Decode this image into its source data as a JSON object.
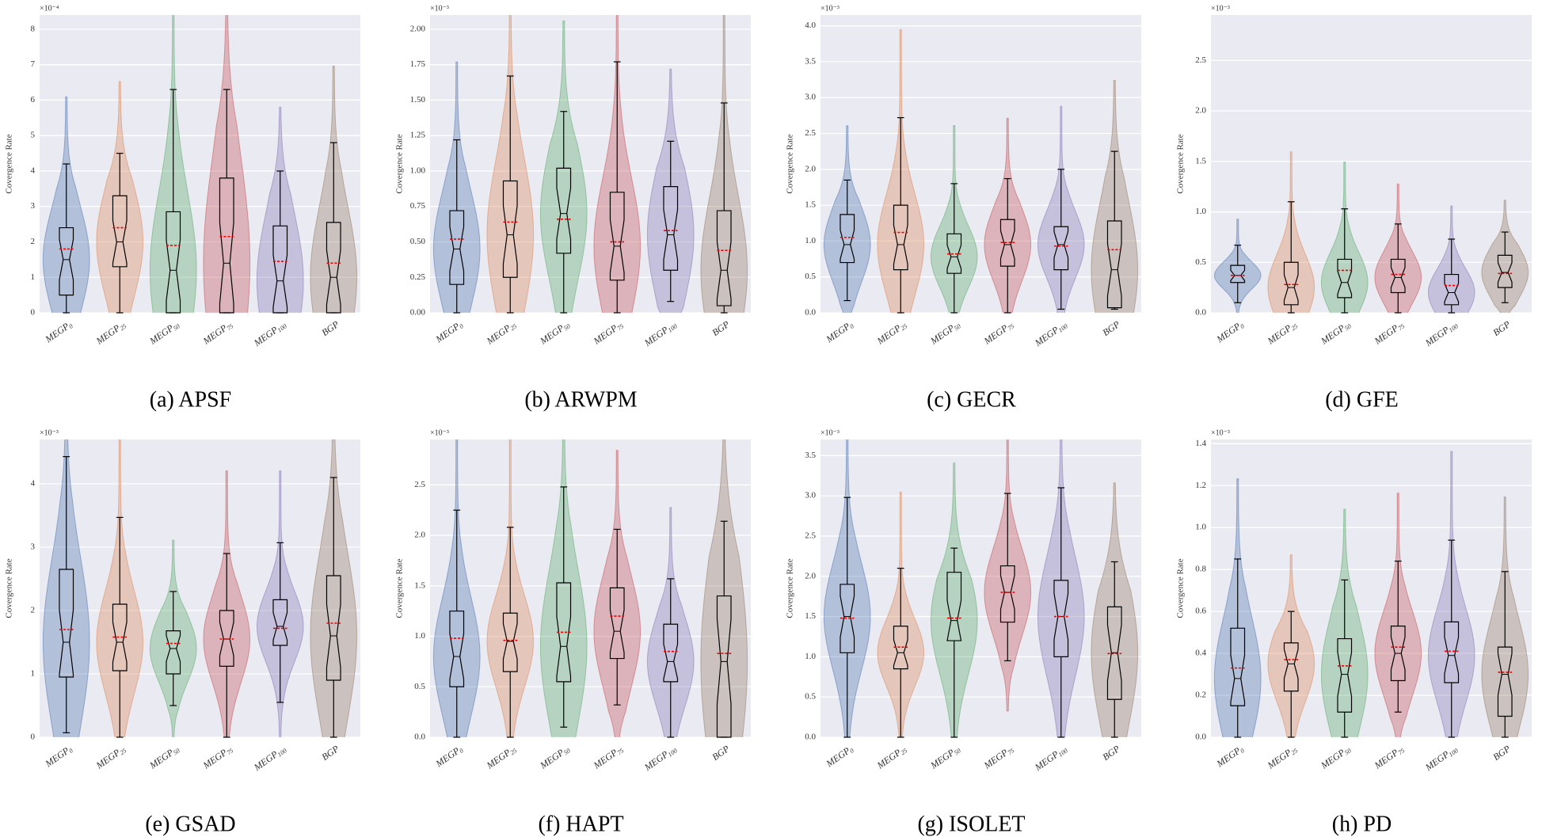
{
  "chart_data": [
    {
      "type": "violin",
      "caption": "(a) APSF",
      "ylabel": "Covergence Rate",
      "y_scale_label": "×10⁻⁴",
      "categories": [
        "MEGP0",
        "MEGP25",
        "MEGP50",
        "MEGP75",
        "MEGP100",
        "BGP"
      ],
      "colors": [
        "#4c72b0",
        "#dd8452",
        "#55a868",
        "#c44e52",
        "#8172b3",
        "#937860"
      ],
      "ylim": [
        0,
        8.4
      ],
      "yticks": [
        0,
        1,
        2,
        3,
        4,
        5,
        6,
        7,
        8
      ],
      "grid": true,
      "whisker_low": [
        0,
        0,
        0,
        0,
        0,
        0
      ],
      "q1": [
        0.5,
        1.3,
        0,
        0,
        0,
        0
      ],
      "median": [
        1.5,
        2.0,
        1.2,
        1.4,
        0.9,
        1.0
      ],
      "q3": [
        2.4,
        3.3,
        2.85,
        3.8,
        2.45,
        2.55
      ],
      "whisker_high": [
        4.2,
        4.5,
        6.3,
        6.3,
        4.0,
        4.8
      ],
      "mean": [
        1.8,
        2.4,
        1.9,
        2.15,
        1.45,
        1.4
      ]
    },
    {
      "type": "violin",
      "caption": "(b) ARWPM",
      "ylabel": "Covergence Rate",
      "y_scale_label": "×10⁻³",
      "categories": [
        "MEGP0",
        "MEGP25",
        "MEGP50",
        "MEGP75",
        "MEGP100",
        "BGP"
      ],
      "colors": [
        "#4c72b0",
        "#dd8452",
        "#55a868",
        "#c44e52",
        "#8172b3",
        "#937860"
      ],
      "ylim": [
        0,
        2.1
      ],
      "yticks": [
        {
          "value": 0,
          "label": "0.00"
        },
        {
          "value": 0.25,
          "label": "0.25"
        },
        {
          "value": 0.5,
          "label": "0.50"
        },
        {
          "value": 0.75,
          "label": "0.75"
        },
        {
          "value": 1,
          "label": "1.00"
        },
        {
          "value": 1.25,
          "label": "1.25"
        },
        {
          "value": 1.5,
          "label": "1.50"
        },
        {
          "value": 1.75,
          "label": "1.75"
        },
        {
          "value": 2,
          "label": "2.00"
        }
      ],
      "grid": true,
      "whisker_low": [
        0,
        0,
        0,
        0,
        0.08,
        0
      ],
      "q1": [
        0.2,
        0.25,
        0.42,
        0.23,
        0.3,
        0.05
      ],
      "median": [
        0.45,
        0.55,
        0.7,
        0.47,
        0.55,
        0.3
      ],
      "q3": [
        0.72,
        0.93,
        1.02,
        0.85,
        0.89,
        0.72
      ],
      "whisker_high": [
        1.22,
        1.67,
        1.42,
        1.77,
        1.21,
        1.48
      ],
      "mean": [
        0.52,
        0.64,
        0.66,
        0.5,
        0.58,
        0.44
      ]
    },
    {
      "type": "violin",
      "caption": "(c) GECR",
      "ylabel": "Covergence Rate",
      "y_scale_label": "×10⁻³",
      "categories": [
        "MEGP0",
        "MEGP25",
        "MEGP50",
        "MEGP75",
        "MEGP100",
        "BGP"
      ],
      "colors": [
        "#4c72b0",
        "#dd8452",
        "#55a868",
        "#c44e52",
        "#8172b3",
        "#937860"
      ],
      "ylim": [
        0,
        4.15
      ],
      "yticks": [
        {
          "value": 0,
          "label": "0.0"
        },
        {
          "value": 0.5,
          "label": "0.5"
        },
        {
          "value": 1,
          "label": "1.0"
        },
        {
          "value": 1.5,
          "label": "1.5"
        },
        {
          "value": 2,
          "label": "2.0"
        },
        {
          "value": 2.5,
          "label": "2.5"
        },
        {
          "value": 3,
          "label": "3.0"
        },
        {
          "value": 3.5,
          "label": "3.5"
        },
        {
          "value": 4,
          "label": "4.0"
        }
      ],
      "grid": true,
      "whisker_low": [
        0.17,
        0,
        0,
        0,
        0.05,
        0.05
      ],
      "q1": [
        0.7,
        0.6,
        0.55,
        0.65,
        0.6,
        0.07
      ],
      "median": [
        0.95,
        0.95,
        0.78,
        0.95,
        0.95,
        0.6
      ],
      "q3": [
        1.37,
        1.5,
        1.1,
        1.3,
        1.2,
        1.28
      ],
      "whisker_high": [
        1.85,
        2.72,
        1.8,
        1.87,
        2.0,
        2.25
      ],
      "mean": [
        1.05,
        1.12,
        0.82,
        0.98,
        0.93,
        0.88
      ]
    },
    {
      "type": "violin",
      "caption": "(d) GFE",
      "ylabel": "Covergence Rate",
      "y_scale_label": "×10⁻³",
      "categories": [
        "MEGP0",
        "MEGP25",
        "MEGP50",
        "MEGP75",
        "MEGP100",
        "BGP"
      ],
      "colors": [
        "#4c72b0",
        "#dd8452",
        "#55a868",
        "#c44e52",
        "#8172b3",
        "#937860"
      ],
      "ylim": [
        0,
        2.95
      ],
      "yticks": [
        {
          "value": 0,
          "label": "0.0"
        },
        {
          "value": 0.5,
          "label": "0.5"
        },
        {
          "value": 1,
          "label": "1.0"
        },
        {
          "value": 1.5,
          "label": "1.5"
        },
        {
          "value": 2,
          "label": "2.0"
        },
        {
          "value": 2.5,
          "label": "2.5"
        }
      ],
      "grid": true,
      "whisker_low": [
        0.1,
        0,
        0,
        0,
        0,
        0.1
      ],
      "q1": [
        0.3,
        0.08,
        0.15,
        0.2,
        0.08,
        0.25
      ],
      "median": [
        0.37,
        0.25,
        0.3,
        0.35,
        0.2,
        0.4
      ],
      "q3": [
        0.47,
        0.5,
        0.53,
        0.53,
        0.38,
        0.57
      ],
      "whisker_high": [
        0.67,
        1.1,
        1.03,
        0.88,
        0.73,
        0.8
      ],
      "mean": [
        0.37,
        0.28,
        0.42,
        0.38,
        0.27,
        0.39
      ]
    },
    {
      "type": "violin",
      "caption": "(e) GSAD",
      "ylabel": "Covergence Rate",
      "y_scale_label": "×10⁻³",
      "categories": [
        "MEGP0",
        "MEGP25",
        "MEGP50",
        "MEGP75",
        "MEGP100",
        "BGP"
      ],
      "colors": [
        "#4c72b0",
        "#dd8452",
        "#55a868",
        "#c44e52",
        "#8172b3",
        "#937860"
      ],
      "ylim": [
        0,
        4.7
      ],
      "yticks": [
        0,
        1,
        2,
        3,
        4
      ],
      "grid": true,
      "whisker_low": [
        0.07,
        0,
        0.5,
        0,
        0.55,
        0
      ],
      "q1": [
        0.95,
        1.05,
        1.0,
        1.12,
        1.45,
        0.9
      ],
      "median": [
        1.5,
        1.5,
        1.4,
        1.55,
        1.75,
        1.6
      ],
      "q3": [
        2.65,
        2.1,
        1.68,
        2.0,
        2.17,
        2.55
      ],
      "whisker_high": [
        4.43,
        3.47,
        2.3,
        2.9,
        3.07,
        4.1
      ],
      "mean": [
        1.7,
        1.58,
        1.48,
        1.55,
        1.72,
        1.8
      ]
    },
    {
      "type": "violin",
      "caption": "(f) HAPT",
      "ylabel": "Covergence Rate",
      "y_scale_label": "×10⁻³",
      "categories": [
        "MEGP0",
        "MEGP25",
        "MEGP50",
        "MEGP75",
        "MEGP100",
        "BGP"
      ],
      "colors": [
        "#4c72b0",
        "#dd8452",
        "#55a868",
        "#c44e52",
        "#8172b3",
        "#937860"
      ],
      "ylim": [
        0,
        2.95
      ],
      "yticks": [
        {
          "value": 0,
          "label": "0.0"
        },
        {
          "value": 0.5,
          "label": "0.5"
        },
        {
          "value": 1,
          "label": "1.0"
        },
        {
          "value": 1.5,
          "label": "1.5"
        },
        {
          "value": 2,
          "label": "2.0"
        },
        {
          "value": 2.5,
          "label": "2.5"
        }
      ],
      "grid": true,
      "whisker_low": [
        0,
        0,
        0.1,
        0.32,
        0,
        0
      ],
      "q1": [
        0.5,
        0.65,
        0.55,
        0.78,
        0.55,
        0
      ],
      "median": [
        0.8,
        0.95,
        0.9,
        1.05,
        0.75,
        0.75
      ],
      "q3": [
        1.25,
        1.23,
        1.53,
        1.48,
        1.12,
        1.4
      ],
      "whisker_high": [
        2.25,
        2.08,
        2.48,
        2.06,
        1.57,
        2.14
      ],
      "mean": [
        0.98,
        0.96,
        1.04,
        1.2,
        0.85,
        0.83
      ]
    },
    {
      "type": "violin",
      "caption": "(g) ISOLET",
      "ylabel": "Covergence Rate",
      "y_scale_label": "×10⁻³",
      "categories": [
        "MEGP0",
        "MEGP25",
        "MEGP50",
        "MEGP75",
        "MEGP100",
        "BGP"
      ],
      "colors": [
        "#4c72b0",
        "#dd8452",
        "#55a868",
        "#c44e52",
        "#8172b3",
        "#937860"
      ],
      "ylim": [
        0,
        3.7
      ],
      "yticks": [
        {
          "value": 0,
          "label": "0.0"
        },
        {
          "value": 0.5,
          "label": "0.5"
        },
        {
          "value": 1,
          "label": "1.0"
        },
        {
          "value": 1.5,
          "label": "1.5"
        },
        {
          "value": 2,
          "label": "2.0"
        },
        {
          "value": 2.5,
          "label": "2.5"
        },
        {
          "value": 3,
          "label": "3.0"
        },
        {
          "value": 3.5,
          "label": "3.5"
        }
      ],
      "grid": true,
      "whisker_low": [
        0,
        0,
        0,
        0.95,
        0,
        0
      ],
      "q1": [
        1.05,
        0.85,
        1.2,
        1.43,
        1.0,
        0.47
      ],
      "median": [
        1.5,
        1.05,
        1.45,
        1.8,
        1.5,
        1.05
      ],
      "q3": [
        1.9,
        1.38,
        2.05,
        2.13,
        1.95,
        1.62
      ],
      "whisker_high": [
        2.98,
        2.1,
        2.35,
        3.03,
        3.1,
        2.18
      ],
      "mean": [
        1.48,
        1.12,
        1.48,
        1.8,
        1.5,
        1.04
      ]
    },
    {
      "type": "violin",
      "caption": "(h) PD",
      "ylabel": "Covergence Rate",
      "y_scale_label": "×10⁻³",
      "categories": [
        "MEGP0",
        "MEGP25",
        "MEGP50",
        "MEGP75",
        "MEGP100",
        "BGP"
      ],
      "colors": [
        "#4c72b0",
        "#dd8452",
        "#55a868",
        "#c44e52",
        "#8172b3",
        "#937860"
      ],
      "ylim": [
        0,
        1.42
      ],
      "yticks": [
        {
          "value": 0,
          "label": "0.0"
        },
        {
          "value": 0.2,
          "label": "0.2"
        },
        {
          "value": 0.4,
          "label": "0.4"
        },
        {
          "value": 0.6,
          "label": "0.6"
        },
        {
          "value": 0.8,
          "label": "0.8"
        },
        {
          "value": 1,
          "label": "1.0"
        },
        {
          "value": 1.2,
          "label": "1.2"
        },
        {
          "value": 1.4,
          "label": "1.4"
        }
      ],
      "grid": true,
      "whisker_low": [
        0,
        0,
        0,
        0.12,
        0,
        0
      ],
      "q1": [
        0.15,
        0.22,
        0.12,
        0.27,
        0.26,
        0.1
      ],
      "median": [
        0.28,
        0.35,
        0.3,
        0.4,
        0.39,
        0.3
      ],
      "q3": [
        0.52,
        0.45,
        0.47,
        0.53,
        0.55,
        0.43
      ],
      "whisker_high": [
        0.85,
        0.6,
        0.75,
        0.84,
        0.94,
        0.79
      ],
      "mean": [
        0.33,
        0.37,
        0.34,
        0.43,
        0.41,
        0.31
      ]
    }
  ]
}
